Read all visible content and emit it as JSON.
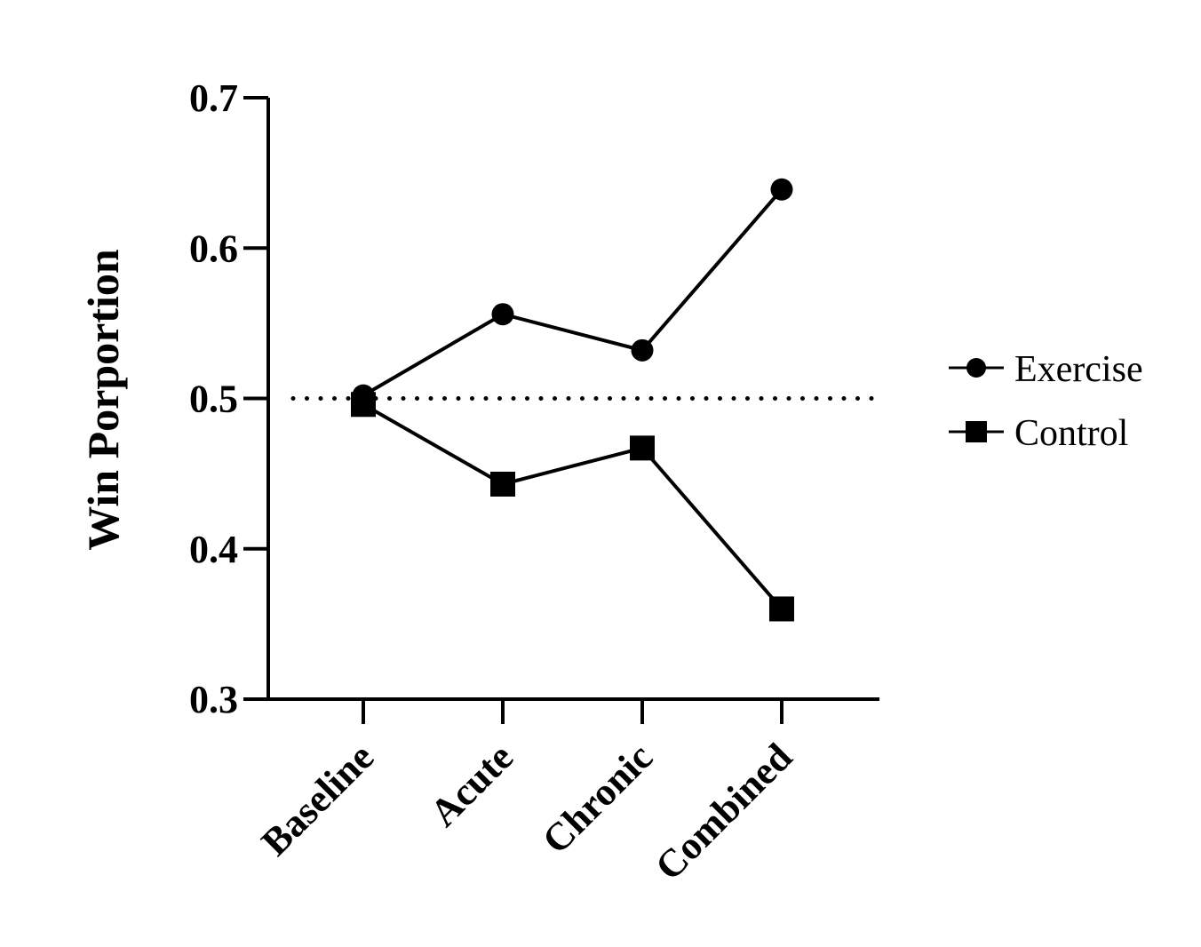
{
  "chart_data": {
    "type": "line",
    "categories": [
      "Baseline",
      "Acute",
      "Chronic",
      "Combined"
    ],
    "series": [
      {
        "name": "Exercise",
        "marker": "circle",
        "values": [
          0.502,
          0.556,
          0.532,
          0.639
        ]
      },
      {
        "name": "Control",
        "marker": "square",
        "values": [
          0.496,
          0.443,
          0.467,
          0.36
        ]
      }
    ],
    "reference_line": {
      "y": 0.5,
      "style": "dotted"
    },
    "title": "",
    "xlabel": "",
    "ylabel": "Win Porportion",
    "ylim": [
      0.3,
      0.7
    ],
    "yticks": [
      "0.3",
      "0.4",
      "0.5",
      "0.6",
      "0.7"
    ],
    "grid": false,
    "legend_position": "right",
    "colors": {
      "line": "#000000",
      "background": "#ffffff"
    }
  }
}
